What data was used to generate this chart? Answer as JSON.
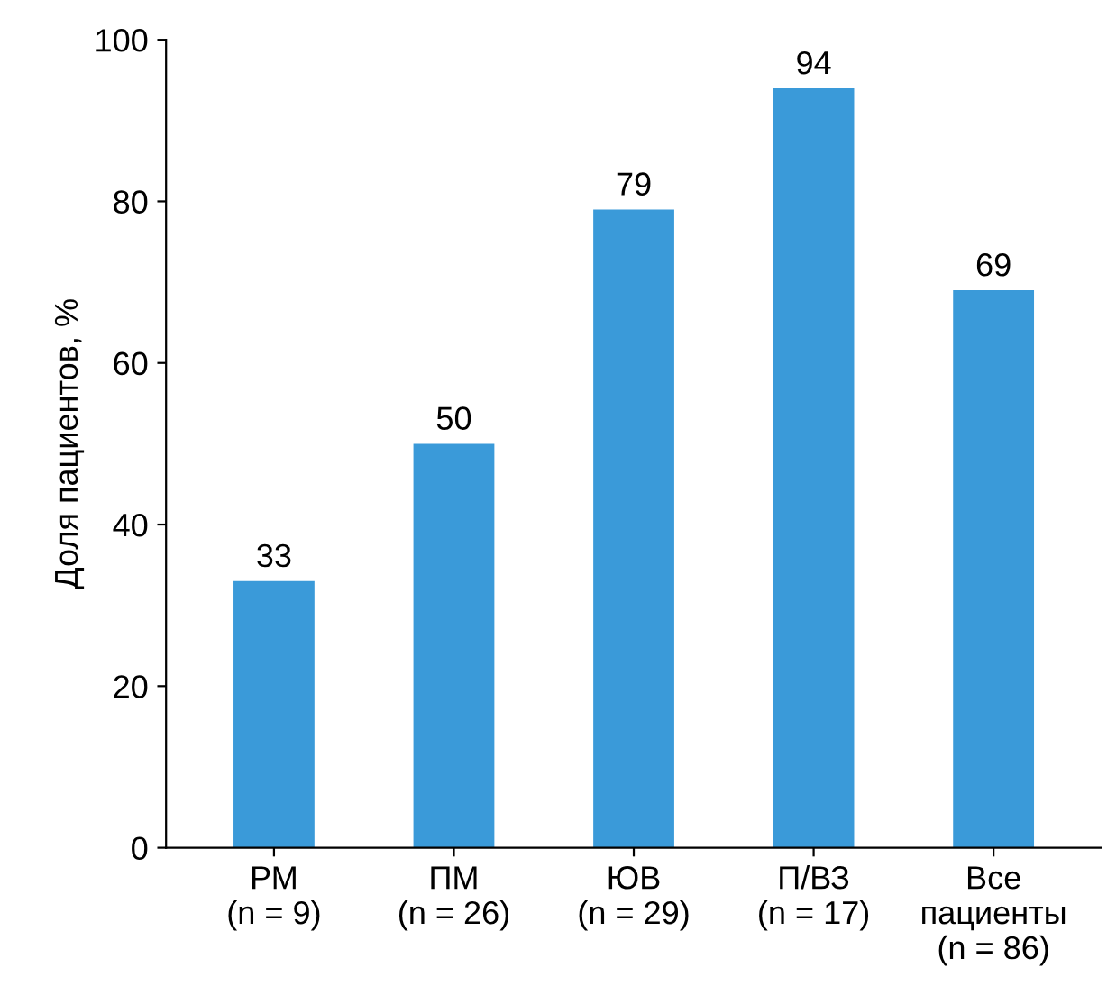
{
  "chart_data": {
    "type": "bar",
    "ylabel": "Доля пациентов, %",
    "categories": [
      "РМ\n(n = 9)",
      "ПМ\n(n = 26)",
      "ЮВ\n(n = 29)",
      "П/ВЗ\n(n = 17)",
      "Все\nпациенты\n(n = 86)"
    ],
    "values": [
      33,
      50,
      79,
      94,
      69
    ],
    "color": "#3a9ad9",
    "ylim": [
      0,
      100
    ],
    "yticks": [
      0,
      20,
      40,
      60,
      80,
      100
    ],
    "grid": false,
    "data_labels": true
  }
}
